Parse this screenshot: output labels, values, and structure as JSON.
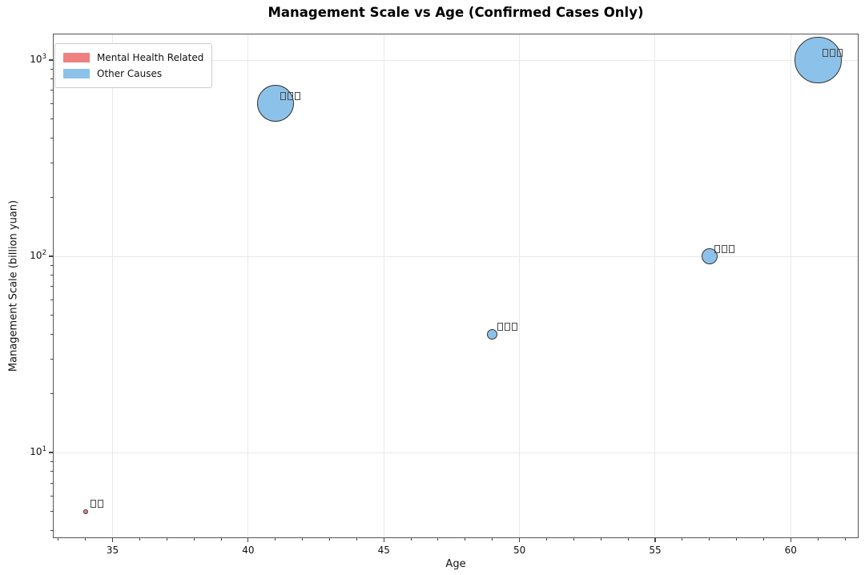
{
  "title": "Management Scale vs Age (Confirmed Cases Only)",
  "legend": {
    "items": [
      {
        "label": "Mental Health Related",
        "color": "#f08080"
      },
      {
        "label": "Other Causes",
        "color": "#8cc2e9"
      }
    ]
  },
  "colors": {
    "mental_health": "#f08080",
    "other_causes": "#8cc2e9",
    "bubble_edge": "#333333",
    "grid": "#e9e9e9",
    "spine": "#555555"
  },
  "chart_data": {
    "type": "scatter",
    "title": "Management Scale vs Age (Confirmed Cases Only)",
    "xlabel": "Age",
    "ylabel": "Management Scale (billion yuan)",
    "x_scale": "linear",
    "y_scale": "log",
    "xlim": [
      32.8,
      62.5
    ],
    "ylim": [
      3.66,
      1364
    ],
    "x_ticks": [
      35,
      40,
      45,
      50,
      55,
      60
    ],
    "x_tick_labels": [
      "35",
      "40",
      "45",
      "50",
      "55",
      "60"
    ],
    "y_ticks": [
      10,
      100,
      1000
    ],
    "y_tick_exponents": [
      1,
      2,
      3
    ],
    "y_tick_base": "10",
    "grid": "major",
    "legend_position": "upper left",
    "size_encoding": "bubble area proportional to management scale",
    "points": [
      {
        "label": "□□",
        "age": 34,
        "scale": 5,
        "category": "Mental Health Related"
      },
      {
        "label": "□□□",
        "age": 41,
        "scale": 600,
        "category": "Other Causes"
      },
      {
        "label": "□□□",
        "age": 49,
        "scale": 40,
        "category": "Other Causes"
      },
      {
        "label": "□□□",
        "age": 57,
        "scale": 100,
        "category": "Other Causes"
      },
      {
        "label": "□□□",
        "age": 61,
        "scale": 1000,
        "category": "Other Causes"
      }
    ]
  }
}
